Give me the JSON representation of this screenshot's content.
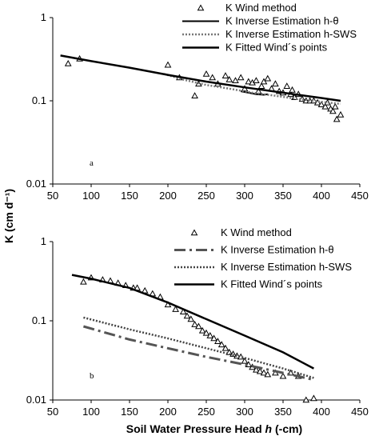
{
  "y_axis_label": "K (cm d⁻¹)",
  "x_axis_label_prefix": "Soil Water Pressure Head ",
  "x_axis_label_symbol": "h",
  "x_axis_label_suffix": " (-cm)",
  "chart_data": [
    {
      "type": "scatter",
      "panel_label": "a",
      "xlim": [
        50,
        450
      ],
      "ylim": [
        0.01,
        1
      ],
      "yscale": "log",
      "x_ticks": [
        50,
        100,
        150,
        200,
        250,
        300,
        350,
        400,
        450
      ],
      "y_ticks": [
        {
          "value": 0.01,
          "label": "0.01"
        },
        {
          "value": 0.1,
          "label": "0.1"
        },
        {
          "value": 1,
          "label": "1"
        }
      ],
      "grid": false,
      "legend_position": "top-right",
      "series": [
        {
          "name": "K Wind method",
          "style": "triangle",
          "color": "#000000",
          "points": [
            [
              70,
              0.28
            ],
            [
              85,
              0.32
            ],
            [
              200,
              0.27
            ],
            [
              215,
              0.19
            ],
            [
              235,
              0.115
            ],
            [
              240,
              0.16
            ],
            [
              250,
              0.21
            ],
            [
              258,
              0.19
            ],
            [
              265,
              0.16
            ],
            [
              275,
              0.2
            ],
            [
              280,
              0.18
            ],
            [
              288,
              0.175
            ],
            [
              295,
              0.19
            ],
            [
              300,
              0.14
            ],
            [
              305,
              0.17
            ],
            [
              310,
              0.165
            ],
            [
              315,
              0.175
            ],
            [
              318,
              0.13
            ],
            [
              322,
              0.15
            ],
            [
              325,
              0.17
            ],
            [
              330,
              0.185
            ],
            [
              335,
              0.14
            ],
            [
              340,
              0.16
            ],
            [
              345,
              0.13
            ],
            [
              350,
              0.125
            ],
            [
              355,
              0.15
            ],
            [
              360,
              0.12
            ],
            [
              362,
              0.135
            ],
            [
              365,
              0.11
            ],
            [
              370,
              0.12
            ],
            [
              375,
              0.105
            ],
            [
              380,
              0.1
            ],
            [
              385,
              0.1
            ],
            [
              390,
              0.1
            ],
            [
              395,
              0.095
            ],
            [
              400,
              0.09
            ],
            [
              405,
              0.085
            ],
            [
              408,
              0.095
            ],
            [
              412,
              0.08
            ],
            [
              415,
              0.075
            ],
            [
              418,
              0.085
            ],
            [
              420,
              0.06
            ],
            [
              425,
              0.068
            ]
          ]
        },
        {
          "name": "K Inverse Estimation h-θ",
          "style": "solid-thin",
          "color": "#000000",
          "points": [
            [
              295,
              0.13
            ],
            [
              305,
              0.125
            ],
            [
              315,
              0.12
            ],
            [
              325,
              0.118
            ],
            [
              330,
              0.12
            ]
          ]
        },
        {
          "name": "K Inverse Estimation h-SWS",
          "style": "dotted",
          "color": "#777777",
          "points": [
            [
              195,
              0.21
            ],
            [
              220,
              0.18
            ],
            [
              250,
              0.155
            ],
            [
              280,
              0.14
            ],
            [
              310,
              0.125
            ],
            [
              340,
              0.115
            ],
            [
              370,
              0.105
            ],
            [
              400,
              0.097
            ],
            [
              425,
              0.092
            ]
          ]
        },
        {
          "name": "K  Fitted Wind´s points",
          "style": "solid",
          "color": "#000000",
          "points": [
            [
              60,
              0.35
            ],
            [
              100,
              0.3
            ],
            [
              150,
              0.25
            ],
            [
              200,
              0.205
            ],
            [
              250,
              0.17
            ],
            [
              300,
              0.145
            ],
            [
              350,
              0.125
            ],
            [
              400,
              0.108
            ],
            [
              425,
              0.1
            ]
          ]
        }
      ]
    },
    {
      "type": "scatter",
      "panel_label": "b",
      "xlim": [
        50,
        450
      ],
      "ylim": [
        0.01,
        1
      ],
      "yscale": "log",
      "x_ticks": [
        50,
        100,
        150,
        200,
        250,
        300,
        350,
        400,
        450
      ],
      "y_ticks": [
        {
          "value": 0.01,
          "label": "0.01"
        },
        {
          "value": 0.1,
          "label": "0.1"
        },
        {
          "value": 1,
          "label": "1"
        }
      ],
      "grid": false,
      "legend_position": "top-right",
      "series": [
        {
          "name": "K Wind method",
          "style": "triangle",
          "color": "#000000",
          "points": [
            [
              90,
              0.31
            ],
            [
              100,
              0.35
            ],
            [
              115,
              0.33
            ],
            [
              125,
              0.32
            ],
            [
              135,
              0.3
            ],
            [
              145,
              0.28
            ],
            [
              155,
              0.26
            ],
            [
              160,
              0.26
            ],
            [
              170,
              0.24
            ],
            [
              180,
              0.22
            ],
            [
              190,
              0.2
            ],
            [
              200,
              0.16
            ],
            [
              210,
              0.14
            ],
            [
              220,
              0.13
            ],
            [
              225,
              0.115
            ],
            [
              230,
              0.105
            ],
            [
              235,
              0.09
            ],
            [
              240,
              0.085
            ],
            [
              245,
              0.075
            ],
            [
              250,
              0.07
            ],
            [
              255,
              0.065
            ],
            [
              260,
              0.06
            ],
            [
              265,
              0.055
            ],
            [
              270,
              0.05
            ],
            [
              275,
              0.045
            ],
            [
              280,
              0.04
            ],
            [
              285,
              0.038
            ],
            [
              290,
              0.036
            ],
            [
              295,
              0.035
            ],
            [
              300,
              0.031
            ],
            [
              305,
              0.028
            ],
            [
              310,
              0.026
            ],
            [
              315,
              0.024
            ],
            [
              320,
              0.023
            ],
            [
              325,
              0.022
            ],
            [
              330,
              0.021
            ],
            [
              340,
              0.022
            ],
            [
              350,
              0.02
            ],
            [
              360,
              0.022
            ],
            [
              370,
              0.02
            ],
            [
              380,
              0.01
            ],
            [
              390,
              0.0105
            ]
          ]
        },
        {
          "name": "K Inverse Estimation h-θ",
          "style": "dashdot",
          "color": "#555555",
          "points": [
            [
              90,
              0.085
            ],
            [
              150,
              0.058
            ],
            [
              200,
              0.045
            ],
            [
              250,
              0.035
            ],
            [
              300,
              0.028
            ],
            [
              350,
              0.022
            ],
            [
              390,
              0.018
            ]
          ]
        },
        {
          "name": "K Inverse Estimation h-SWS",
          "style": "dotted",
          "color": "#444444",
          "points": [
            [
              90,
              0.11
            ],
            [
              150,
              0.078
            ],
            [
              200,
              0.06
            ],
            [
              250,
              0.045
            ],
            [
              300,
              0.034
            ],
            [
              350,
              0.025
            ],
            [
              390,
              0.019
            ]
          ]
        },
        {
          "name": "K Fitted Wind´s points",
          "style": "solid",
          "color": "#000000",
          "points": [
            [
              75,
              0.38
            ],
            [
              100,
              0.34
            ],
            [
              150,
              0.26
            ],
            [
              200,
              0.17
            ],
            [
              250,
              0.105
            ],
            [
              300,
              0.065
            ],
            [
              350,
              0.04
            ],
            [
              390,
              0.025
            ]
          ]
        }
      ]
    }
  ]
}
